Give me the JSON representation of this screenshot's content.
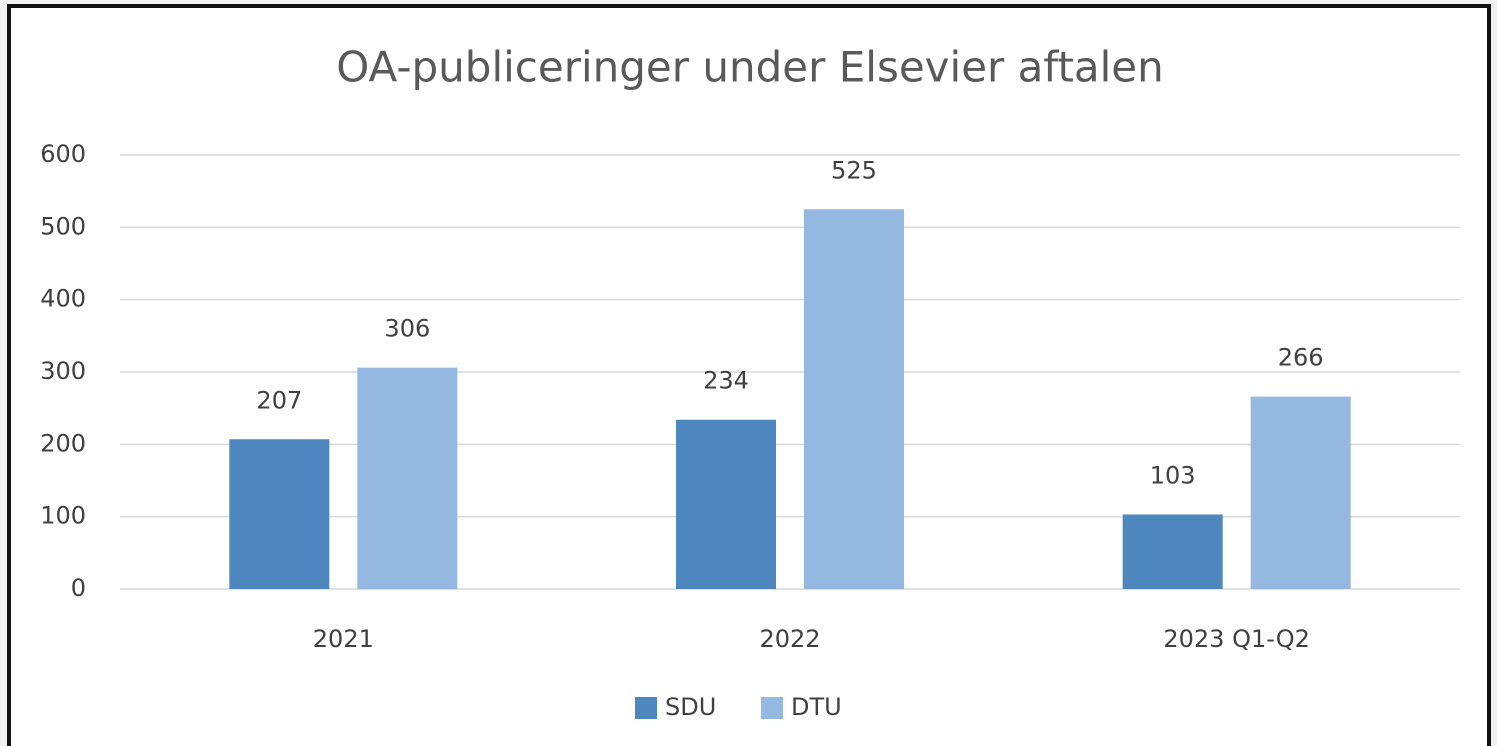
{
  "chart_data": {
    "type": "bar",
    "title": "OA-publiceringer under Elsevier aftalen",
    "categories": [
      "2021",
      "2022",
      "2023 Q1-Q2"
    ],
    "series": [
      {
        "name": "SDU",
        "color": "#4e87bd",
        "values": [
          207,
          234,
          103
        ]
      },
      {
        "name": "DTU",
        "color": "#95b8e0",
        "values": [
          306,
          525,
          266
        ]
      }
    ],
    "ylim": [
      0,
      600
    ],
    "yticks": [
      0,
      100,
      200,
      300,
      400,
      500,
      600
    ],
    "grid": true,
    "legend": "bottom"
  }
}
